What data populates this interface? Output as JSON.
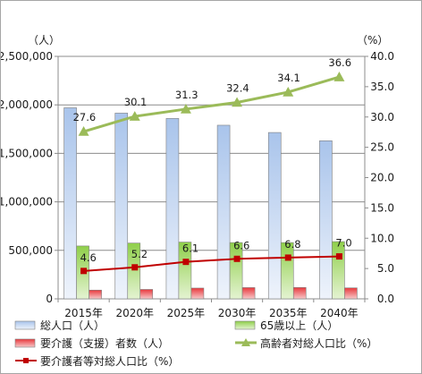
{
  "chart_data": {
    "type": "bar",
    "categories": [
      "2015年",
      "2020年",
      "2025年",
      "2030年",
      "2035年",
      "2040年"
    ],
    "left_axis": {
      "unit_label": "（人）",
      "ylim": [
        0,
        2500000
      ],
      "ticks": [
        0,
        500000,
        1000000,
        1500000,
        2000000,
        2500000
      ],
      "tick_labels": [
        "0",
        "500,000",
        "1,000,000",
        "1,500,000",
        "2,000,000",
        "2,500,000"
      ]
    },
    "right_axis": {
      "unit_label": "（%）",
      "ylim": [
        0,
        40
      ],
      "ticks": [
        0,
        5,
        10,
        15,
        20,
        25,
        30,
        35,
        40
      ],
      "tick_labels": [
        "0.0",
        "5.0",
        "10.0",
        "15.0",
        "20.0",
        "25.0",
        "30.0",
        "35.0",
        "40.0"
      ]
    },
    "series": [
      {
        "name": "総人口（人）",
        "kind": "bar",
        "axis": "left",
        "color": "#a9c4eb",
        "values": [
          1970000,
          1915000,
          1860000,
          1790000,
          1715000,
          1630000
        ]
      },
      {
        "name": "65歳以上（人）",
        "kind": "bar",
        "axis": "left",
        "color": "#92d050",
        "values": [
          545000,
          575000,
          585000,
          580000,
          580000,
          590000
        ]
      },
      {
        "name": "要介護（支援）者数（人）",
        "kind": "bar",
        "axis": "left",
        "color": "#e8393d",
        "values": [
          90000,
          97000,
          111000,
          116000,
          117000,
          113000
        ]
      },
      {
        "name": "高齢者対総人口比（%）",
        "kind": "line",
        "axis": "right",
        "color": "#9bbb59",
        "marker": "triangle",
        "values": [
          27.6,
          30.1,
          31.3,
          32.4,
          34.1,
          36.6
        ],
        "labels": [
          "27.6",
          "30.1",
          "31.3",
          "32.4",
          "34.1",
          "36.6"
        ]
      },
      {
        "name": "要介護者等対総人口比（%）",
        "kind": "line",
        "axis": "right",
        "color": "#c00000",
        "marker": "square",
        "values": [
          4.6,
          5.2,
          6.1,
          6.6,
          6.8,
          7.0
        ],
        "labels": [
          "4.6",
          "5.2",
          "6.1",
          "6.6",
          "6.8",
          "7.0"
        ]
      }
    ],
    "grid": true,
    "legend_position": "bottom"
  }
}
